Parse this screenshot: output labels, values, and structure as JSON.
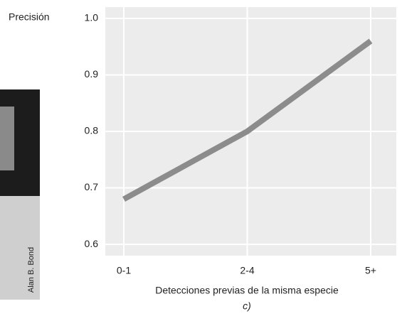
{
  "chart_data": {
    "type": "line",
    "y_label": "Precisión",
    "x_label": "Detecciones previas de la misma especie",
    "panel_label": "c)",
    "categories": [
      "0-1",
      "2-4",
      "5+"
    ],
    "values": [
      0.68,
      0.8,
      0.96
    ],
    "color": "#8c8c8c",
    "ylim": [
      0.58,
      1.02
    ],
    "yticks": [
      {
        "value": 1,
        "label": "1.0"
      },
      0.9,
      0.8,
      0.7,
      0.6
    ],
    "grid": true
  },
  "photo_credit": "Alan B. Bond"
}
